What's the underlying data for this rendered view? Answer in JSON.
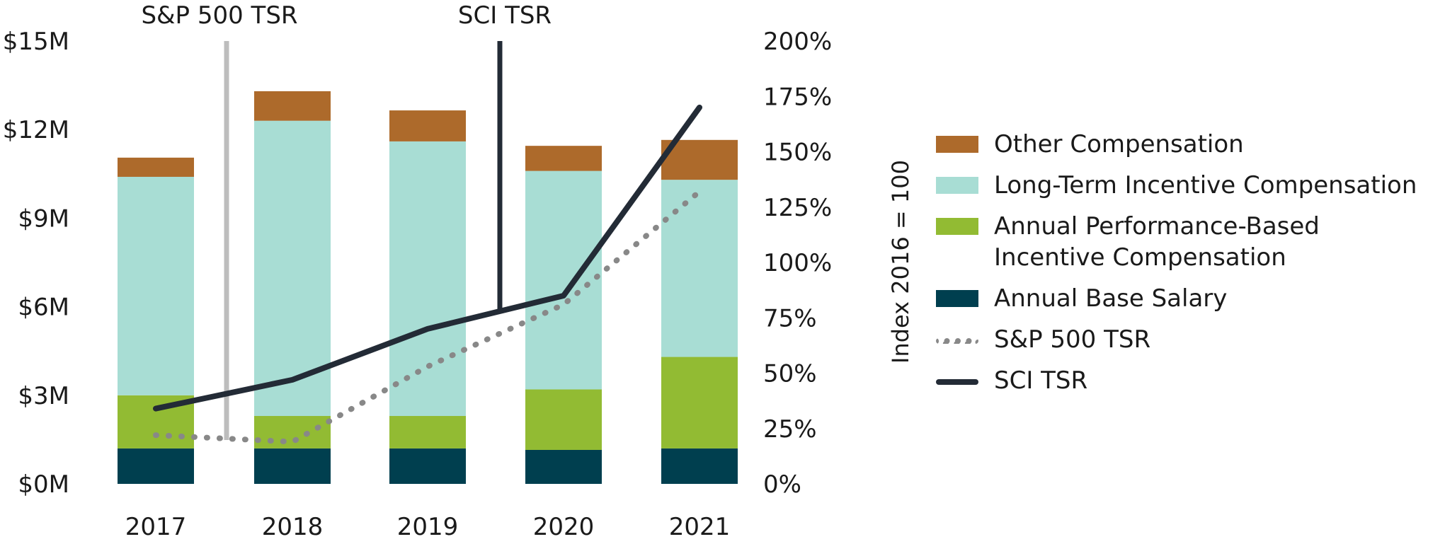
{
  "chart_data": {
    "type": "bar",
    "stacked": true,
    "categories": [
      "2017",
      "2018",
      "2019",
      "2020",
      "2021"
    ],
    "left_axis": {
      "ticks": [
        "$0M",
        "$3M",
        "$6M",
        "$9M",
        "$12M",
        "$15M"
      ],
      "ylim": [
        0,
        15
      ],
      "unit": "$M"
    },
    "right_axis": {
      "label": "Index 2016 = 100",
      "ticks": [
        "0%",
        "25%",
        "50%",
        "75%",
        "100%",
        "125%",
        "150%",
        "175%",
        "200%"
      ],
      "ylim": [
        0,
        200
      ]
    },
    "series": [
      {
        "name": "Annual Base Salary",
        "color": "#003f4f",
        "values": [
          1.2,
          1.2,
          1.2,
          1.15,
          1.2
        ]
      },
      {
        "name": "Annual Performance-Based Incentive Compensation",
        "color": "#92bb33",
        "values": [
          1.8,
          1.1,
          1.1,
          2.05,
          3.1
        ]
      },
      {
        "name": "Long-Term Incentive Compensation",
        "color": "#a8ddd4",
        "values": [
          7.4,
          10.0,
          9.3,
          7.4,
          6.0
        ]
      },
      {
        "name": "Other Compensation",
        "color": "#ad6a2b",
        "values": [
          0.65,
          1.0,
          1.05,
          0.85,
          1.35
        ]
      }
    ],
    "lines": [
      {
        "name": "S&P 500 TSR",
        "style": "dotted",
        "color": "#888888",
        "values": [
          22,
          19,
          53,
          81,
          132
        ]
      },
      {
        "name": "SCI TSR",
        "style": "solid",
        "color": "#232b36",
        "values": [
          34,
          47,
          70,
          85,
          170
        ]
      }
    ],
    "callouts": [
      {
        "label": "S&P 500 TSR",
        "color": "#bdbdbd"
      },
      {
        "label": "SCI TSR",
        "color": "#232b36"
      }
    ],
    "legend": [
      {
        "label": "Other Compensation",
        "kind": "swatch",
        "color": "#ad6a2b"
      },
      {
        "label": "Long-Term Incentive Compensation",
        "kind": "swatch",
        "color": "#a8ddd4"
      },
      {
        "label": "Annual Performance-Based\nIncentive Compensation",
        "kind": "swatch",
        "color": "#92bb33"
      },
      {
        "label": "Annual Base Salary",
        "kind": "swatch",
        "color": "#003f4f"
      },
      {
        "label": "S&P 500 TSR",
        "kind": "dotted",
        "color": "#888888"
      },
      {
        "label": "SCI TSR",
        "kind": "solid",
        "color": "#232b36"
      }
    ]
  }
}
